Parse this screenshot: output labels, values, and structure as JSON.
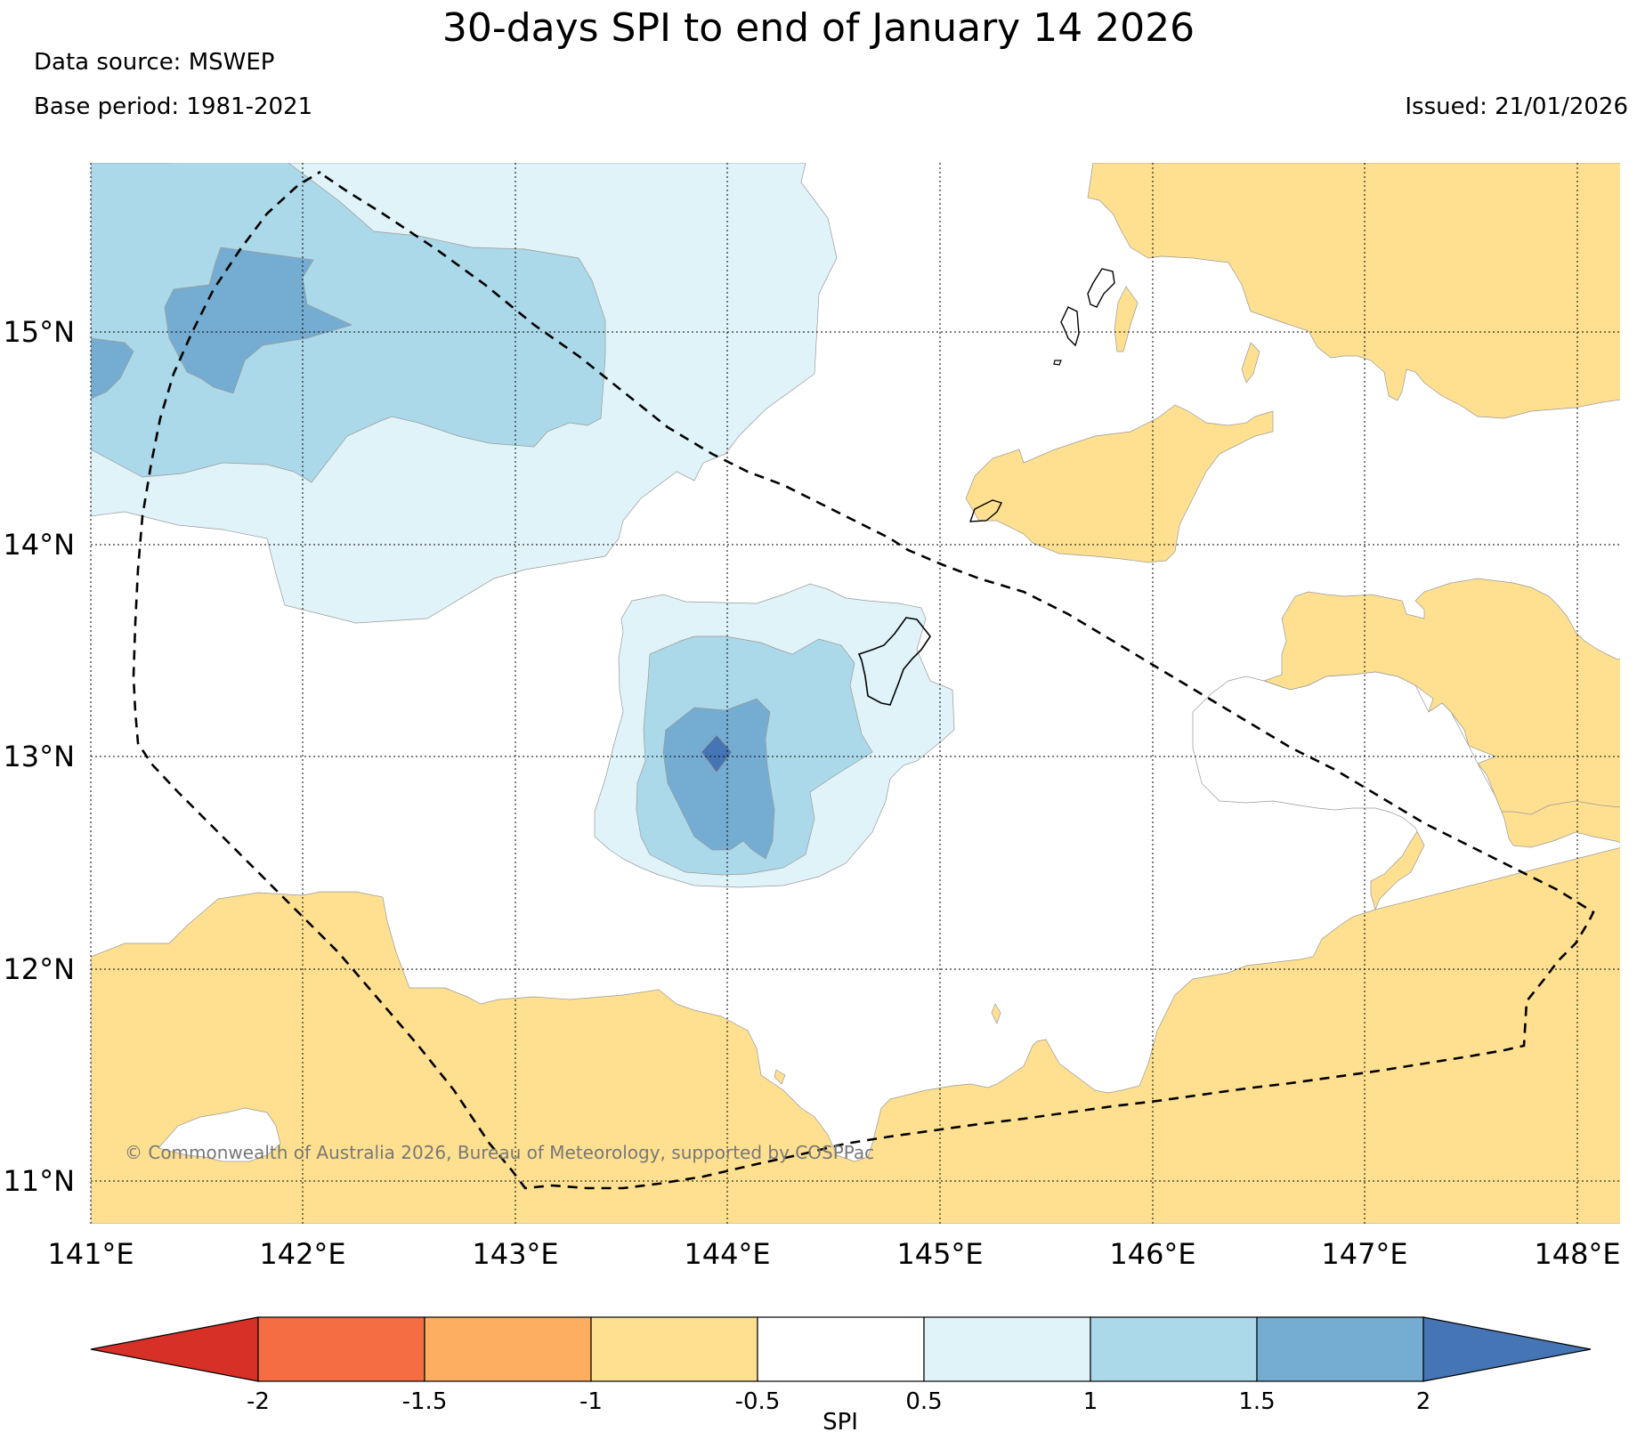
{
  "header": {
    "title": "30-days SPI to end of January 14 2026",
    "data_source": "Data source: MSWEP",
    "base_period": "Base period: 1981-2021",
    "issued": "Issued: 21/01/2026"
  },
  "copyright": "© Commonwealth of Australia 2026, Bureau of Meteorology, supported by COSPPac",
  "map": {
    "lon_labels": [
      "141°E",
      "142°E",
      "143°E",
      "144°E",
      "145°E",
      "146°E",
      "147°E",
      "148°E"
    ],
    "lat_labels": [
      "11°N",
      "12°N",
      "13°N",
      "14°N",
      "15°N"
    ],
    "colors": {
      "dry_mod": "#fee090",
      "wet_mild": "#e0f3f8",
      "wet_mod": "#abd9e9",
      "wet_sev": "#74add1",
      "wet_ext": "#4575b4",
      "boundary": "#000000"
    }
  },
  "colorbar": {
    "label": "SPI",
    "ticks": [
      "-2",
      "-1.5",
      "-1",
      "-0.5",
      "0.5",
      "1",
      "1.5",
      "2"
    ],
    "colors": [
      "#d73027",
      "#f46d43",
      "#fdae61",
      "#fee090",
      "#ffffff",
      "#e0f3f8",
      "#abd9e9",
      "#74add1",
      "#4575b4"
    ]
  }
}
